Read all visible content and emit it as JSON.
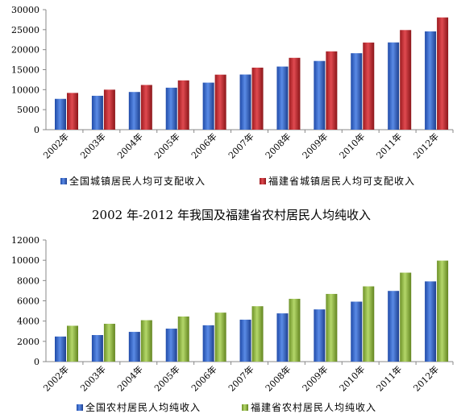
{
  "chart_data": [
    {
      "type": "bar",
      "title": "",
      "categories": [
        "2002年",
        "2003年",
        "2004年",
        "2005年",
        "2006年",
        "2007年",
        "2008年",
        "2009年",
        "2010年",
        "2011年",
        "2012年"
      ],
      "series": [
        {
          "name": "全国城镇居民人均可支配收入",
          "color": "#2f5fc4",
          "values": [
            7703,
            8472,
            9422,
            10493,
            11759,
            13786,
            15781,
            17175,
            19109,
            21810,
            24565
          ]
        },
        {
          "name": "福建省城镇居民人均可支配收入",
          "color": "#c0272d",
          "values": [
            9189,
            9999,
            11175,
            12321,
            13753,
            15506,
            17961,
            19577,
            21781,
            24907,
            28055
          ]
        }
      ],
      "ylim": [
        0,
        30000
      ],
      "yticks": [
        0,
        5000,
        10000,
        15000,
        20000,
        25000,
        30000
      ],
      "xlabel": "",
      "ylabel": "",
      "legend": "bottom"
    },
    {
      "type": "bar",
      "title": "2002 年-2012 年我国及福建省农村居民人均纯收入",
      "categories": [
        "2002年",
        "2003年",
        "2004年",
        "2005年",
        "2006年",
        "2007年",
        "2008年",
        "2009年",
        "2010年",
        "2011年",
        "2012年"
      ],
      "series": [
        {
          "name": "全国农村居民人均纯收入",
          "color": "#2f5fc4",
          "values": [
            2476,
            2622,
            2936,
            3255,
            3587,
            4140,
            4761,
            5153,
            5919,
            6977,
            7917
          ]
        },
        {
          "name": "福建省农村居民人均纯收入",
          "color": "#8fb33a",
          "values": [
            3539,
            3734,
            4089,
            4450,
            4835,
            5467,
            6196,
            6680,
            7427,
            8779,
            9967
          ]
        }
      ],
      "ylim": [
        0,
        12000
      ],
      "yticks": [
        0,
        2000,
        4000,
        6000,
        8000,
        10000,
        12000
      ],
      "xlabel": "",
      "ylabel": "",
      "legend": "bottom"
    }
  ]
}
